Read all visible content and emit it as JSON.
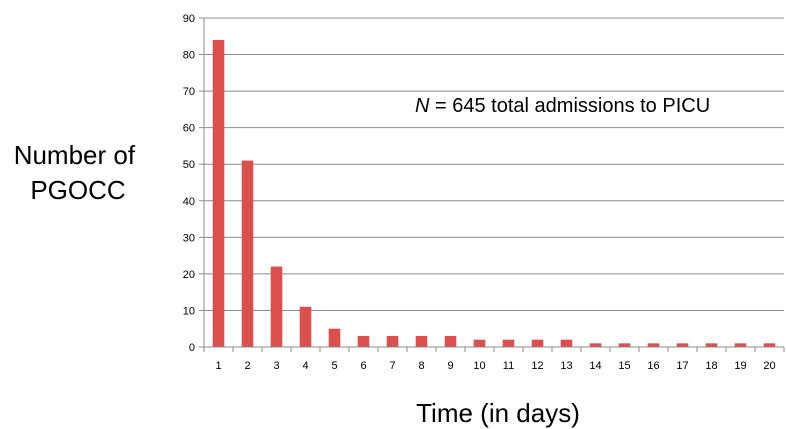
{
  "chart_data": {
    "type": "bar",
    "categories": [
      "1",
      "2",
      "3",
      "4",
      "5",
      "6",
      "7",
      "8",
      "9",
      "10",
      "11",
      "12",
      "13",
      "14",
      "15",
      "16",
      "17",
      "18",
      "19",
      "20"
    ],
    "values": [
      84,
      51,
      22,
      11,
      5,
      3,
      3,
      3,
      3,
      2,
      2,
      2,
      2,
      1,
      1,
      1,
      1,
      1,
      1,
      1
    ],
    "title": "",
    "xlabel": "Time (in days)",
    "ylabel_lines": [
      "Number of",
      "PGOCC"
    ],
    "ylim": [
      0,
      90
    ],
    "yticks": [
      0,
      10,
      20,
      30,
      40,
      50,
      60,
      70,
      80,
      90
    ],
    "grid": true,
    "annotation": {
      "italic_part": "N",
      "rest": " = 645 total admissions to PICU"
    },
    "bar_color": "#d9504e",
    "grid_color": "#8c8c8c",
    "axis_color": "#8c8c8c"
  }
}
